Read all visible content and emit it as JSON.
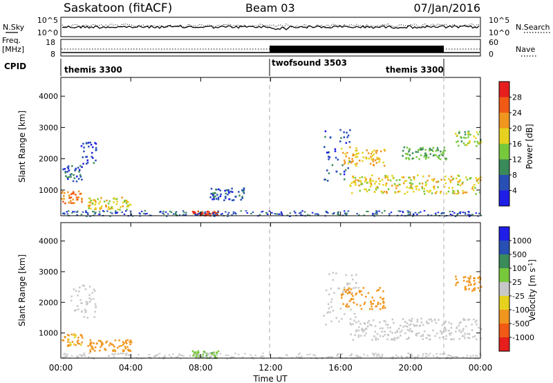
{
  "header": {
    "station": "Saskatoon (fitACF)",
    "beam": "Beam 03",
    "date": "07/Jan/2016"
  },
  "noise_panel": {
    "left_label": "N.Sky",
    "right_label": "N.Search",
    "left_ticks": [
      "10^5",
      "10^0"
    ],
    "right_ticks": [
      "10^5",
      "10^0"
    ]
  },
  "freq_panel": {
    "left_label_line1": "Freq.",
    "left_label_line2": "[MHz]",
    "right_label": "Nave",
    "left_ticks": [
      "18",
      "8"
    ],
    "right_ticks": [
      "60",
      "0"
    ]
  },
  "cpid": {
    "label": "CPID",
    "segments": [
      {
        "name": "themis 3300",
        "start_hour": 0,
        "end_hour": 12.0
      },
      {
        "name": "twofsound 3503",
        "start_hour": 12.0,
        "end_hour": 22.0
      },
      {
        "name": "themis 3300",
        "start_hour": 22.0,
        "end_hour": 24.0
      }
    ]
  },
  "power_panel": {
    "ylabel": "Slant Range [km]",
    "yticks": [
      "1000",
      "2000",
      "3000",
      "4000"
    ],
    "colorbar_label": "Power [dB]",
    "colorbar_ticks": [
      "4",
      "8",
      "12",
      "16",
      "20",
      "24",
      "28"
    ],
    "colors": [
      "#1e1ee6",
      "#2850b4",
      "#3a8a5a",
      "#78c83c",
      "#e6d21e",
      "#f0961e",
      "#f05a14",
      "#e61e1e"
    ]
  },
  "velocity_panel": {
    "ylabel": "Slant Range [km]",
    "yticks": [
      "1000",
      "2000",
      "3000",
      "4000"
    ],
    "colorbar_label": "Velocity [m s^-1]",
    "colorbar_ticks": [
      "-1000",
      "-500",
      "-100",
      "-25",
      "25",
      "100",
      "500",
      "1000"
    ],
    "colors": [
      "#e61e1e",
      "#f05a14",
      "#f0961e",
      "#e6d21e",
      "#c8c8c8",
      "#78c83c",
      "#3a8a5a",
      "#2850b4",
      "#1e1ee6"
    ]
  },
  "time_axis": {
    "xlabel": "Time UT",
    "ticks": [
      "00:00",
      "04:00",
      "08:00",
      "12:00",
      "16:00",
      "20:00",
      "00:00"
    ]
  },
  "chart_data": {
    "type": "heatmap",
    "x_range_hours": [
      0,
      24
    ],
    "y_range_km": [
      180,
      4600
    ],
    "power_features": [
      {
        "t0": 0.0,
        "t1": 1.2,
        "r0": 600,
        "r1": 1000,
        "value_db": 24
      },
      {
        "t0": 0.0,
        "t1": 1.2,
        "r0": 1300,
        "r1": 1800,
        "value_db": 6
      },
      {
        "t0": 1.0,
        "t1": 2.0,
        "r0": 1800,
        "r1": 2600,
        "value_db": 5
      },
      {
        "t0": 1.5,
        "t1": 4.0,
        "r0": 400,
        "r1": 800,
        "value_db": 18
      },
      {
        "t0": 7.5,
        "t1": 9.0,
        "r0": 200,
        "r1": 350,
        "value_db": 28
      },
      {
        "t0": 8.5,
        "t1": 10.5,
        "r0": 700,
        "r1": 1100,
        "value_db": 6
      },
      {
        "t0": 15.0,
        "t1": 16.5,
        "r0": 1300,
        "r1": 3000,
        "value_db": 6
      },
      {
        "t0": 16.0,
        "t1": 18.5,
        "r0": 1800,
        "r1": 2400,
        "value_db": 20
      },
      {
        "t0": 16.5,
        "t1": 24.0,
        "r0": 900,
        "r1": 1500,
        "value_db": 18
      },
      {
        "t0": 19.5,
        "t1": 22.0,
        "r0": 2000,
        "r1": 2400,
        "value_db": 12
      },
      {
        "t0": 22.5,
        "t1": 24.0,
        "r0": 2400,
        "r1": 2900,
        "value_db": 14
      }
    ],
    "velocity_features": [
      {
        "t0": 0.0,
        "t1": 1.2,
        "r0": 600,
        "r1": 1000,
        "value_ms": -120
      },
      {
        "t0": 1.5,
        "t1": 4.0,
        "r0": 400,
        "r1": 800,
        "value_ms": -150
      },
      {
        "t0": 0.5,
        "t1": 2.0,
        "r0": 1500,
        "r1": 2600,
        "value_ms": 0
      },
      {
        "t0": 7.5,
        "t1": 9.0,
        "r0": 200,
        "r1": 450,
        "value_ms": 80
      },
      {
        "t0": 15.0,
        "t1": 17.0,
        "r0": 1300,
        "r1": 3000,
        "value_ms": 0
      },
      {
        "t0": 16.0,
        "t1": 18.5,
        "r0": 1800,
        "r1": 2500,
        "value_ms": -200
      },
      {
        "t0": 16.5,
        "t1": 24.0,
        "r0": 800,
        "r1": 1500,
        "value_ms": 0
      },
      {
        "t0": 22.5,
        "t1": 24.0,
        "r0": 2400,
        "r1": 2900,
        "value_ms": -200
      }
    ]
  }
}
